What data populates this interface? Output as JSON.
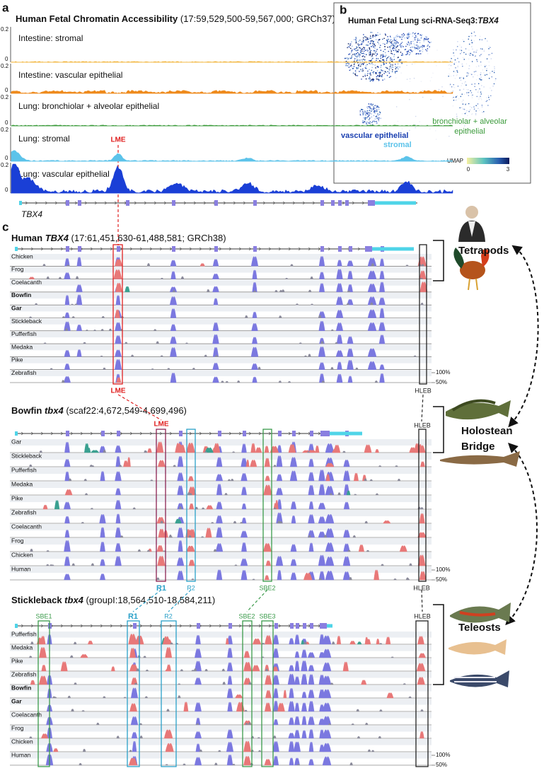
{
  "panel_a": {
    "letter": "a",
    "title": "Human Fetal Chromatin Accessibility",
    "coords": "(17:59,529,500-59,567,000; GRCh37)",
    "tracks": [
      {
        "name": "Intestine: stromal",
        "color": "#f2b53a",
        "ymax": 0.2,
        "ymin": 0
      },
      {
        "name": "Intestine: vascular epithelial",
        "color": "#ee8a1c",
        "ymax": 0.2,
        "ymin": 0
      },
      {
        "name": "Lung: bronchiolar + alveolar epithelial",
        "color": "#3a9a3a",
        "ymax": 0.2,
        "ymin": 0
      },
      {
        "name": "Lung: stromal",
        "color": "#5cc3ea",
        "ymax": 0.2,
        "ymin": 0
      },
      {
        "name": "Lung: vascular epithelial",
        "color": "#1a3fd6",
        "ymax": 0.2,
        "ymin": 0
      }
    ],
    "region": "LME",
    "gene": "TBX4"
  },
  "panel_b": {
    "letter": "b",
    "title": "Human Fetal Lung sci-RNA-Seq3:",
    "gene": "TBX4",
    "clusters": [
      "stromal",
      "vascular epithelial",
      "bronchiolar + alveolar",
      "epithelial"
    ],
    "colorbar": {
      "label": "UMAP",
      "min": 0,
      "max": 3
    }
  },
  "panel_c": {
    "letter": "c",
    "human": {
      "species": "Human",
      "gene": "TBX4",
      "coords": "(17:61,451,630-61,488,581; GRCh38)",
      "rows": [
        "Chicken",
        "Frog",
        "Coelacanth",
        "Bowfin",
        "Gar",
        "Stickleback",
        "Pufferfish",
        "Medaka",
        "Pike",
        "Zebrafish"
      ],
      "scale": [
        "100%",
        "50%"
      ],
      "bottom_labels": [
        "LME",
        "HLEB"
      ]
    },
    "bowfin": {
      "species": "Bowfin",
      "gene": "tbx4",
      "coords": "(scaf22:4,672,549-4,699,496)",
      "rows": [
        "Gar",
        "Stickleback",
        "Pufferfish",
        "Medaka",
        "Pike",
        "Zebrafish",
        "Coelacanth",
        "Frog",
        "Chicken",
        "Human"
      ],
      "scale": [
        "100%",
        "50%"
      ],
      "top_labels": [
        "LME",
        "HLEB"
      ],
      "bottom_labels": [
        "R1",
        "R2",
        "SBE2",
        "HLEB"
      ]
    },
    "stickleback": {
      "species": "Stickleback",
      "gene": "tbx4",
      "coords": "(groupI:18,564,510-18,584,211)",
      "rows": [
        "Pufferfish",
        "Medaka",
        "Pike",
        "Zebrafish",
        "Bowfin",
        "Gar",
        "Coelacanth",
        "Frog",
        "Chicken",
        "Human"
      ],
      "scale": [
        "100%",
        "50%"
      ],
      "top_labels": [
        "SBE1",
        "R1",
        "R2",
        "SBE2",
        "SBE3",
        "HLEB"
      ]
    }
  },
  "groups": [
    {
      "lines": [
        "Tetrapods"
      ]
    },
    {
      "lines": [
        "Holostean",
        "Bridge"
      ]
    },
    {
      "lines": [
        "Teleosts"
      ]
    }
  ]
}
